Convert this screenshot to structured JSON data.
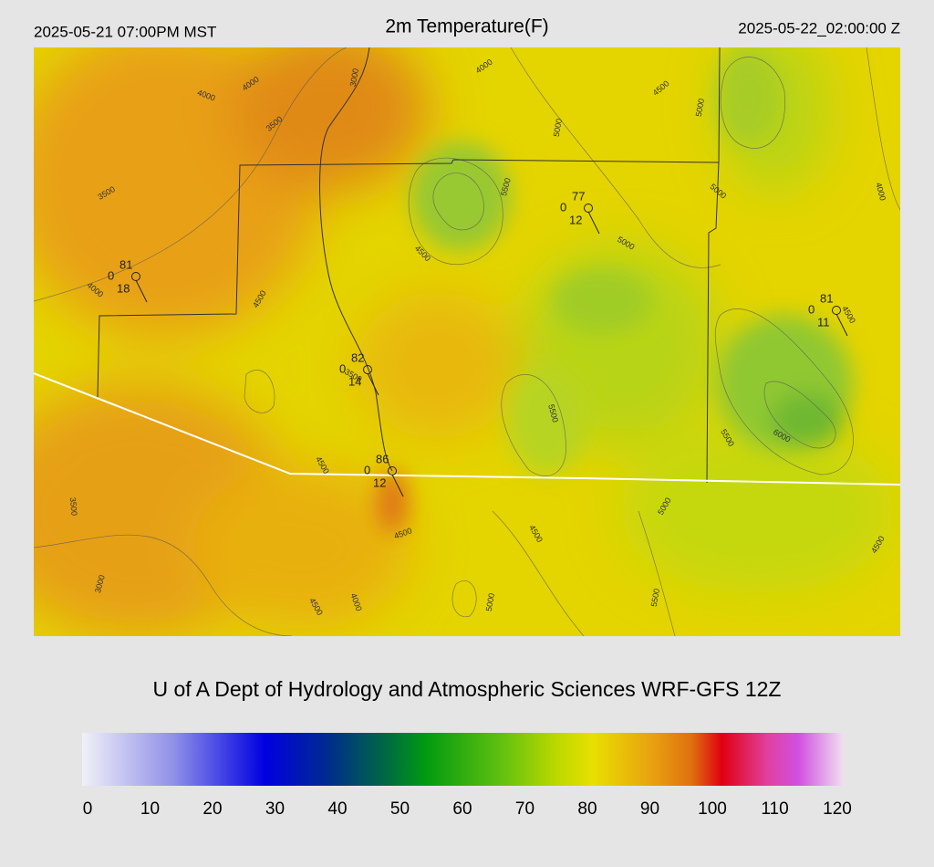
{
  "header": {
    "left": "2025-05-21 07:00PM MST",
    "title": "2m Temperature(F)",
    "right": "2025-05-22_02:00:00 Z"
  },
  "footer": "U of A Dept of Hydrology and Atmospheric Sciences WRF-GFS 12Z",
  "stations": [
    {
      "temp": 81,
      "mid": 0,
      "low": 18
    },
    {
      "temp": 77,
      "mid": 0,
      "low": 12
    },
    {
      "temp": 81,
      "mid": 0,
      "low": 11
    },
    {
      "temp": 82,
      "mid": 0,
      "low": 14
    },
    {
      "temp": 86,
      "mid": 0,
      "low": 12
    }
  ],
  "contour_labels": [
    4000,
    4000,
    4000,
    4000,
    4000,
    4000,
    3000,
    3000,
    3500,
    3500,
    3500,
    3500,
    4500,
    4500,
    4500,
    4500,
    4500,
    4500,
    4500,
    4500,
    4500,
    5000,
    5000,
    5000,
    5000,
    5000,
    5000,
    5500,
    5500,
    5500,
    5500,
    6000
  ],
  "colorbar": {
    "range": [
      0,
      120
    ],
    "ticks": [
      0,
      10,
      20,
      30,
      40,
      50,
      60,
      70,
      80,
      90,
      100,
      110,
      120
    ]
  }
}
